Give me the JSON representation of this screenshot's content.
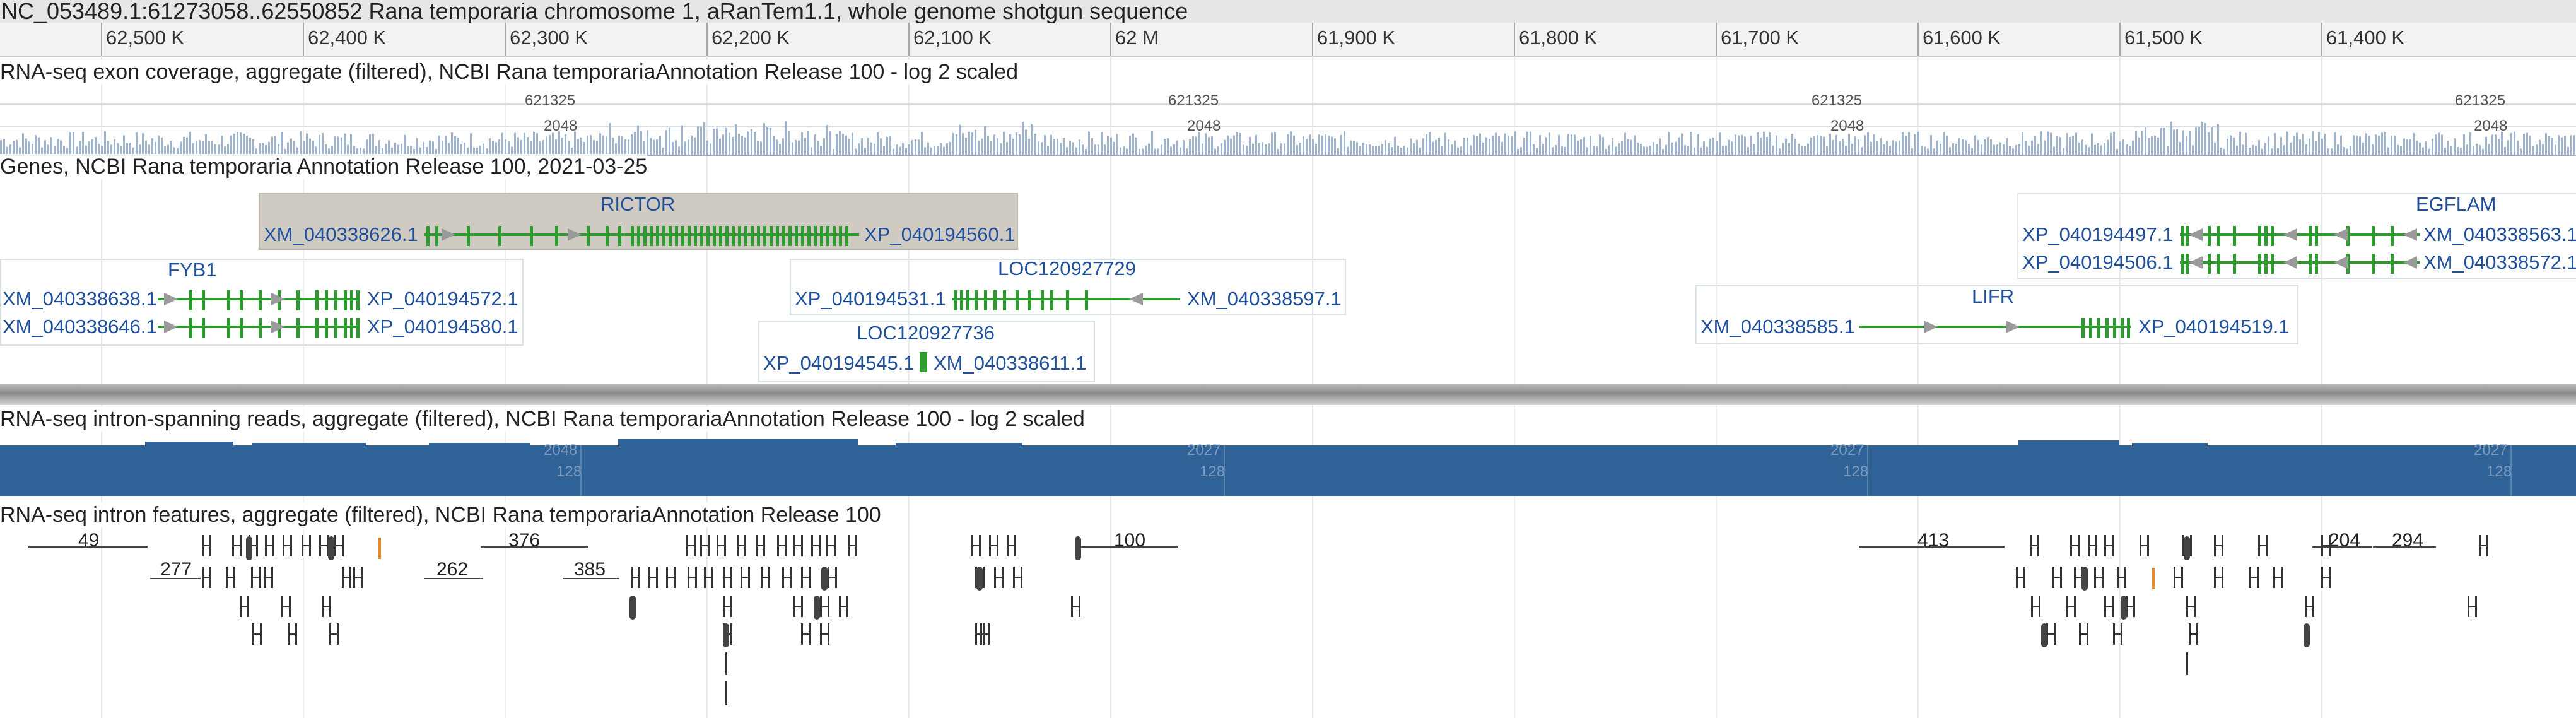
{
  "title": "NC_053489.1:61273058..62550852 Rana temporaria chromosome 1, aRanTem1.1, whole genome shotgun sequence",
  "ruler": [
    "62,500 K",
    "62,400 K",
    "62,300 K",
    "62,200 K",
    "62,100 K",
    "62 M",
    "61,900 K",
    "61,800 K",
    "61,700 K",
    "61,600 K",
    "61,500 K",
    "61,400 K"
  ],
  "tracks": {
    "coverage": {
      "title": "RNA-seq exon coverage, aggregate (filtered), NCBI Rana temporariaAnnotation Release 100 - log 2 scaled",
      "max_label": "621325",
      "mid_label": "2048"
    },
    "genes": {
      "title": "Genes, NCBI Rana temporaria Annotation Release 100, 2021-03-25",
      "gene_names": [
        "RICTOR",
        "FYB1",
        "LOC120927729",
        "LOC120927736",
        "LIFR",
        "EGFLAM"
      ],
      "transcripts": [
        "XM_040338626.1",
        "XP_040194560.1",
        "XM_040338638.1",
        "XP_040194572.1",
        "XM_040338646.1",
        "XP_040194580.1",
        "XP_040194531.1",
        "XM_040338597.1",
        "XP_040194545.1",
        "XM_040338611.1",
        "XM_040338585.1",
        "XP_040194519.1",
        "XP_040194497.1",
        "XM_040338563.1",
        "XP_040194506.1",
        "XM_040338572.1"
      ]
    },
    "intron_reads": {
      "title": "RNA-seq intron-spanning reads, aggregate (filtered), NCBI Rana temporariaAnnotation Release 100 - log 2 scaled",
      "labels": [
        "2048",
        "128",
        "2027",
        "128",
        "2027",
        "128",
        "2027",
        "128"
      ]
    },
    "intron_features": {
      "title": "RNA-seq intron features, aggregate (filtered), NCBI Rana temporariaAnnotation Release 100",
      "counts": [
        "49",
        "277",
        "376",
        "262",
        "385",
        "100",
        "413",
        "204",
        "294"
      ]
    }
  },
  "colors": {
    "gene": "#2f9a2f",
    "label": "#20509c",
    "band": "#2f6296",
    "coverage": "#9fb3cc",
    "highlight": "#e58a2a"
  }
}
